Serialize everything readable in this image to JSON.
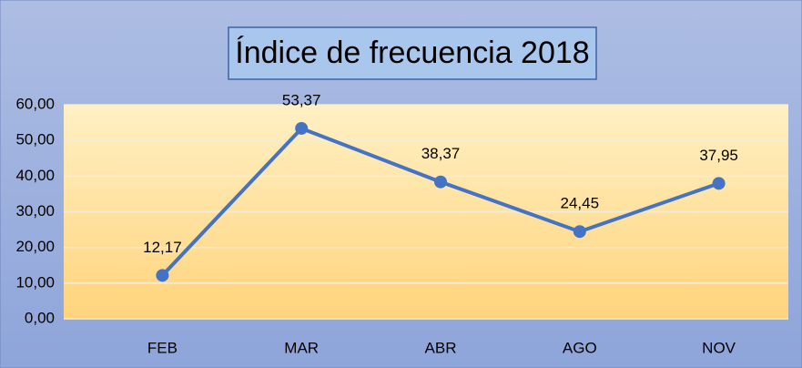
{
  "chart_data": {
    "type": "line",
    "title": "Índice de frecuencia 2018",
    "categories": [
      "FEB",
      "MAR",
      "ABR",
      "AGO",
      "NOV"
    ],
    "series": [
      {
        "name": "Índice de frecuencia",
        "color": "#4472c4",
        "values": [
          12.17,
          53.37,
          38.37,
          24.45,
          37.95
        ],
        "value_labels": [
          "12,17",
          "53,37",
          "38,37",
          "24,45",
          "37,95"
        ]
      }
    ],
    "ylim": [
      0,
      60
    ],
    "yticks": [
      {
        "value": 0,
        "label": "0,00"
      },
      {
        "value": 10,
        "label": "10,00"
      },
      {
        "value": 20,
        "label": "20,00"
      },
      {
        "value": 30,
        "label": "30,00"
      },
      {
        "value": 40,
        "label": "40,00"
      },
      {
        "value": 50,
        "label": "50,00"
      },
      {
        "value": 60,
        "label": "60,00"
      }
    ],
    "grid": true
  }
}
